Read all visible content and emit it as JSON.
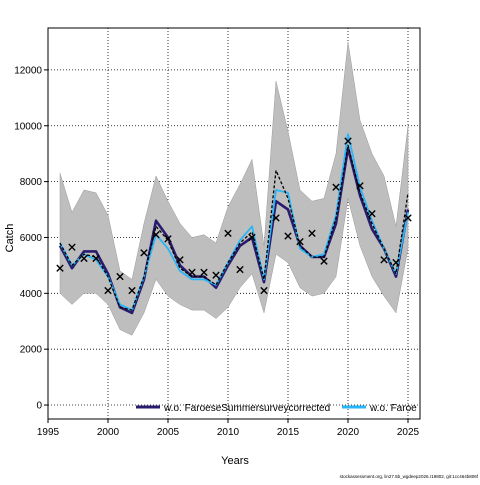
{
  "chart_data": {
    "type": "line",
    "ylabel": "Catch",
    "xlabel": "Years",
    "footer": "stockassessment.org, lin27.5b_wgdeep2026.r19802, git:1cc464b806f",
    "xlim": [
      1995,
      2026
    ],
    "ylim": [
      -500,
      13500
    ],
    "xticks": [
      "1995",
      "2000",
      "2005",
      "2010",
      "2015",
      "2020",
      "2025"
    ],
    "yticks": [
      "0",
      "2000",
      "4000",
      "6000",
      "8000",
      "10000",
      "12000"
    ],
    "grid": true,
    "legend_position": "bottom",
    "legend": [
      {
        "label": "w.o. FaroeseSummersurveycorrected",
        "color": "#2a1a6e"
      },
      {
        "label": "w.o. Faroe",
        "color": "#29b6f6"
      }
    ],
    "x": [
      1996,
      1997,
      1998,
      1999,
      2000,
      2001,
      2002,
      2003,
      2004,
      2005,
      2006,
      2007,
      2008,
      2009,
      2010,
      2011,
      2012,
      2013,
      2014,
      2015,
      2016,
      2017,
      2018,
      2019,
      2020,
      2021,
      2022,
      2023,
      2024,
      2025
    ],
    "ci_band": {
      "color": "#bebebe",
      "lower": [
        4000,
        3600,
        4000,
        4000,
        3600,
        2700,
        2500,
        3300,
        4500,
        3900,
        3600,
        3400,
        3400,
        3100,
        3500,
        4200,
        4700,
        3300,
        5400,
        5100,
        4200,
        3900,
        4000,
        4600,
        7400,
        5700,
        4600,
        3900,
        3300,
        5600
      ],
      "upper": [
        8300,
        6900,
        7700,
        7600,
        6800,
        4800,
        4500,
        6500,
        8200,
        7300,
        6500,
        6000,
        6100,
        5800,
        7100,
        7900,
        8800,
        5700,
        11600,
        9800,
        7700,
        7300,
        7400,
        9000,
        13000,
        10200,
        9000,
        8200,
        6400,
        10000
      ]
    },
    "observed": {
      "marker": "x",
      "values": [
        4900,
        5650,
        5250,
        5250,
        4100,
        4600,
        4100,
        5450,
        6100,
        5950,
        5200,
        4750,
        4750,
        4650,
        6150,
        4850,
        6000,
        4100,
        6700,
        6050,
        5850,
        6150,
        5150,
        7800,
        9450,
        7850,
        6850,
        5200,
        5100,
        6700
      ]
    },
    "series": [
      {
        "name": "w.o. FaroeseSummersurveycorrected",
        "color": "#2a1a6e",
        "values": [
          5700,
          4900,
          5500,
          5500,
          4700,
          3500,
          3300,
          4500,
          6600,
          6000,
          5000,
          4600,
          4600,
          4200,
          5000,
          5700,
          6000,
          4400,
          7300,
          7000,
          5700,
          5300,
          5300,
          6500,
          9200,
          7500,
          6300,
          5600,
          4600,
          7000
        ]
      },
      {
        "name": "w.o. Faroe",
        "color": "#29b6f6",
        "values": [
          5800,
          5000,
          5400,
          5200,
          4600,
          3600,
          3400,
          4600,
          6100,
          5600,
          4800,
          4500,
          4500,
          4300,
          5100,
          5900,
          6400,
          4500,
          7700,
          7600,
          5600,
          5300,
          5400,
          6800,
          9700,
          7800,
          6600,
          5600,
          4700,
          6900
        ]
      },
      {
        "name": "",
        "color": "#000000",
        "dash": "3,2",
        "values": [
          5800,
          5000,
          5400,
          5300,
          4600,
          3500,
          3400,
          4600,
          6400,
          5900,
          4900,
          4600,
          4600,
          4300,
          5100,
          5800,
          6200,
          4500,
          8400,
          7400,
          5700,
          5300,
          5300,
          6700,
          9300,
          7600,
          6500,
          5600,
          4700,
          7600
        ]
      }
    ]
  }
}
